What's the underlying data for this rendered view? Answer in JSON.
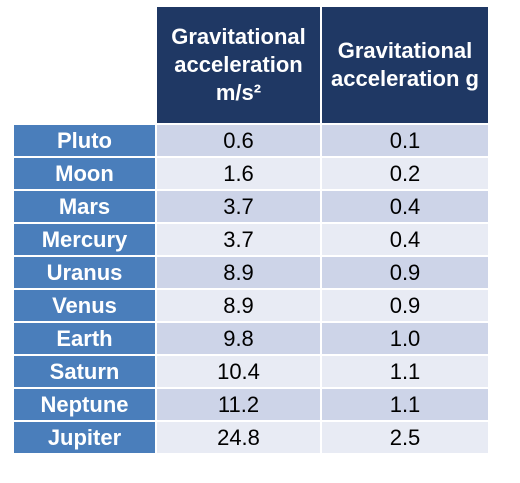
{
  "table": {
    "header": [
      "Gravitational acceleration m/s²",
      "Gravitational acceleration g"
    ],
    "rows": [
      [
        "Pluto",
        "0.6",
        "0.1"
      ],
      [
        "Moon",
        "1.6",
        "0.2"
      ],
      [
        "Mars",
        "3.7",
        "0.4"
      ],
      [
        "Mercury",
        "3.7",
        "0.4"
      ],
      [
        "Uranus",
        "8.9",
        "0.9"
      ],
      [
        "Venus",
        "8.9",
        "0.9"
      ],
      [
        "Earth",
        "9.8",
        "1.0"
      ],
      [
        "Saturn",
        "10.4",
        "1.1"
      ],
      [
        "Neptune",
        "11.2",
        "1.1"
      ],
      [
        "Jupiter",
        "24.8",
        "2.5"
      ]
    ]
  }
}
